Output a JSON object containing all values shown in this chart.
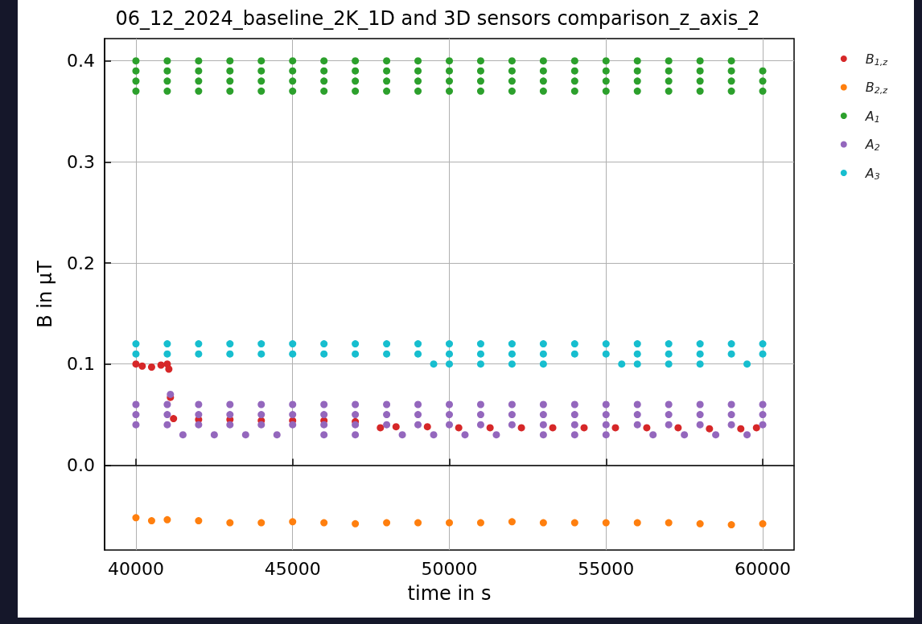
{
  "chart_data": {
    "type": "scatter",
    "title": "06_12_2024_baseline_2K_1D and 3D sensors comparison_z_axis_2",
    "xlabel": "time in s",
    "ylabel": "B in μT",
    "xlim": [
      39000,
      61000
    ],
    "ylim": [
      -0.084,
      0.422
    ],
    "xticks": [
      40000,
      45000,
      50000,
      55000,
      60000
    ],
    "yticks": [
      {
        "value": 0,
        "label": "0.0"
      },
      0.1,
      0.2,
      0.3,
      0.4
    ],
    "grid": true,
    "legend": "right",
    "marker": "circle",
    "series": [
      {
        "name": "B$_{1,z}$",
        "color": "#d62728",
        "x": [
          40000,
          40200,
          40500,
          40800,
          41000,
          41050,
          41100,
          41200,
          42000,
          43000,
          44000,
          45000,
          46000,
          47000,
          47800,
          48300,
          49300,
          50300,
          51300,
          52300,
          53300,
          54300,
          55300,
          56300,
          57300,
          58300,
          59300,
          59800
        ],
        "values": [
          0.1,
          0.098,
          0.097,
          0.099,
          0.1,
          0.095,
          0.067,
          0.046,
          0.045,
          0.045,
          0.044,
          0.044,
          0.044,
          0.043,
          0.037,
          0.038,
          0.038,
          0.037,
          0.037,
          0.037,
          0.037,
          0.037,
          0.037,
          0.037,
          0.037,
          0.036,
          0.036,
          0.037
        ]
      },
      {
        "name": "B$_{2,z}$",
        "color": "#ff7f0e",
        "x": [
          40000,
          40500,
          41000,
          42000,
          43000,
          44000,
          45000,
          46000,
          47000,
          48000,
          49000,
          50000,
          51000,
          52000,
          53000,
          54000,
          55000,
          56000,
          57000,
          58000,
          59000,
          60000
        ],
        "values": [
          -0.052,
          -0.055,
          -0.054,
          -0.055,
          -0.057,
          -0.057,
          -0.056,
          -0.057,
          -0.058,
          -0.057,
          -0.057,
          -0.057,
          -0.057,
          -0.056,
          -0.057,
          -0.057,
          -0.057,
          -0.057,
          -0.057,
          -0.058,
          -0.059,
          -0.058
        ]
      },
      {
        "name": "A$_{1}$",
        "color": "#2ca02c",
        "x": [
          40000,
          41000,
          42000,
          43000,
          44000,
          45000,
          46000,
          47000,
          48000,
          49000,
          50000,
          51000,
          52000,
          53000,
          54000,
          55000,
          56000,
          57000,
          58000,
          59000,
          60000,
          40000,
          41000,
          42000,
          43000,
          44000,
          45000,
          46000,
          47000,
          48000,
          49000,
          50000,
          51000,
          52000,
          53000,
          54000,
          55000,
          56000,
          57000,
          58000,
          59000,
          60000,
          40000,
          41000,
          42000,
          43000,
          44000,
          45000,
          46000,
          47000,
          48000,
          49000,
          50000,
          51000,
          52000,
          53000,
          54000,
          55000,
          56000,
          57000,
          58000,
          59000,
          40000,
          41000,
          42000,
          43000,
          44000,
          45000,
          46000,
          47000,
          48000,
          49000,
          50000,
          51000,
          52000,
          53000,
          54000,
          55000,
          56000,
          57000,
          58000,
          59000,
          60000
        ],
        "values": [
          0.39,
          0.39,
          0.39,
          0.39,
          0.39,
          0.39,
          0.39,
          0.39,
          0.39,
          0.39,
          0.39,
          0.39,
          0.39,
          0.39,
          0.39,
          0.39,
          0.39,
          0.39,
          0.39,
          0.39,
          0.39,
          0.38,
          0.38,
          0.38,
          0.38,
          0.38,
          0.38,
          0.38,
          0.38,
          0.38,
          0.38,
          0.38,
          0.38,
          0.38,
          0.38,
          0.38,
          0.38,
          0.38,
          0.38,
          0.38,
          0.38,
          0.38,
          0.4,
          0.4,
          0.4,
          0.4,
          0.4,
          0.4,
          0.4,
          0.4,
          0.4,
          0.4,
          0.4,
          0.4,
          0.4,
          0.4,
          0.4,
          0.4,
          0.4,
          0.4,
          0.4,
          0.4,
          0.37,
          0.37,
          0.37,
          0.37,
          0.37,
          0.37,
          0.37,
          0.37,
          0.37,
          0.37,
          0.37,
          0.37,
          0.37,
          0.37,
          0.37,
          0.37,
          0.37,
          0.37,
          0.37,
          0.37,
          0.37
        ]
      },
      {
        "name": "A$_{2}$",
        "color": "#9467bd",
        "x": [
          40000,
          41000,
          42000,
          43000,
          44000,
          45000,
          46000,
          47000,
          48000,
          49000,
          50000,
          51000,
          52000,
          53000,
          54000,
          55000,
          56000,
          57000,
          58000,
          59000,
          60000,
          40000,
          41000,
          42000,
          43000,
          44000,
          45000,
          46000,
          47000,
          48000,
          49000,
          50000,
          51000,
          52000,
          53000,
          54000,
          55000,
          56000,
          57000,
          58000,
          59000,
          60000,
          40000,
          41000,
          42000,
          43000,
          44000,
          45000,
          46000,
          47000,
          48000,
          49000,
          50000,
          51000,
          52000,
          53000,
          54000,
          55000,
          56000,
          57000,
          58000,
          59000,
          60000,
          41100,
          41500,
          42500,
          43500,
          44500,
          46000,
          47000,
          48500,
          49500,
          50500,
          51500,
          53000,
          54000,
          55000,
          56500,
          57500,
          58500,
          59500
        ],
        "values": [
          0.05,
          0.05,
          0.05,
          0.05,
          0.05,
          0.05,
          0.05,
          0.05,
          0.05,
          0.05,
          0.05,
          0.05,
          0.05,
          0.05,
          0.05,
          0.05,
          0.05,
          0.05,
          0.05,
          0.05,
          0.05,
          0.04,
          0.04,
          0.04,
          0.04,
          0.04,
          0.04,
          0.04,
          0.04,
          0.04,
          0.04,
          0.04,
          0.04,
          0.04,
          0.04,
          0.04,
          0.04,
          0.04,
          0.04,
          0.04,
          0.04,
          0.04,
          0.06,
          0.06,
          0.06,
          0.06,
          0.06,
          0.06,
          0.06,
          0.06,
          0.06,
          0.06,
          0.06,
          0.06,
          0.06,
          0.06,
          0.06,
          0.06,
          0.06,
          0.06,
          0.06,
          0.06,
          0.06,
          0.07,
          0.03,
          0.03,
          0.03,
          0.03,
          0.03,
          0.03,
          0.03,
          0.03,
          0.03,
          0.03,
          0.03,
          0.03,
          0.03,
          0.03,
          0.03,
          0.03,
          0.03
        ]
      },
      {
        "name": "A$_{3}$",
        "color": "#17becf",
        "x": [
          40000,
          41000,
          42000,
          43000,
          44000,
          45000,
          46000,
          47000,
          48000,
          49000,
          50000,
          51000,
          52000,
          53000,
          54000,
          55000,
          56000,
          57000,
          58000,
          59000,
          60000,
          40000,
          41000,
          42000,
          43000,
          44000,
          45000,
          46000,
          47000,
          48000,
          49000,
          50000,
          51000,
          52000,
          53000,
          54000,
          55000,
          56000,
          57000,
          58000,
          59000,
          60000,
          49500,
          50000,
          51000,
          52000,
          53000,
          55500,
          56000,
          57000,
          58000,
          59500
        ],
        "values": [
          0.12,
          0.12,
          0.12,
          0.12,
          0.12,
          0.12,
          0.12,
          0.12,
          0.12,
          0.12,
          0.12,
          0.12,
          0.12,
          0.12,
          0.12,
          0.12,
          0.12,
          0.12,
          0.12,
          0.12,
          0.12,
          0.11,
          0.11,
          0.11,
          0.11,
          0.11,
          0.11,
          0.11,
          0.11,
          0.11,
          0.11,
          0.11,
          0.11,
          0.11,
          0.11,
          0.11,
          0.11,
          0.11,
          0.11,
          0.11,
          0.11,
          0.11,
          0.1,
          0.1,
          0.1,
          0.1,
          0.1,
          0.1,
          0.1,
          0.1,
          0.1,
          0.1
        ]
      }
    ]
  }
}
